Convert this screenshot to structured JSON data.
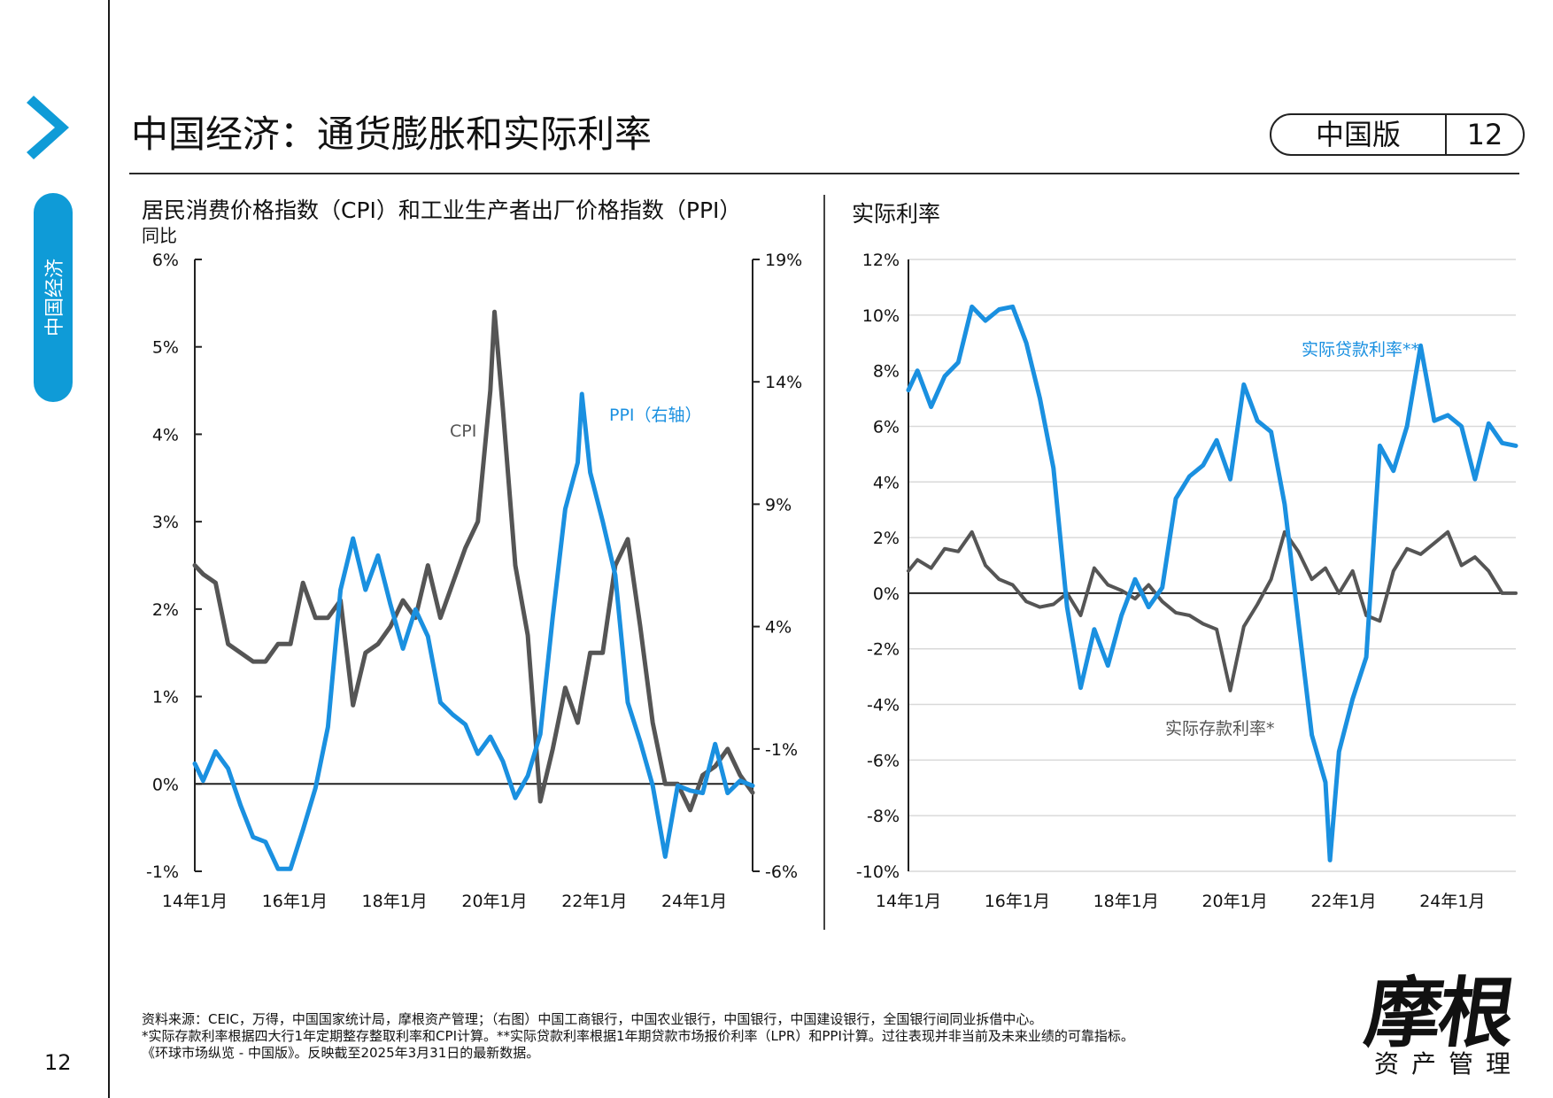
{
  "sidebar": {
    "section_label": "中国经济"
  },
  "header": {
    "title": "中国经济：通货膨胀和实际利率",
    "edition": "中国版",
    "page_badge": "12"
  },
  "charts": {
    "left": {
      "title": "居民消费价格指数（CPI）和工业生产者出厂价格指数（PPI）",
      "subtitle": "同比"
    },
    "right": {
      "title": "实际利率"
    }
  },
  "chart_data": [
    {
      "type": "line",
      "title": "居民消费价格指数（CPI）和工业生产者出厂价格指数（PPI）",
      "subtitle": "同比",
      "x_range": [
        "2014-01",
        "2025-03"
      ],
      "xtick_labels": [
        "14年1月",
        "16年1月",
        "18年1月",
        "20年1月",
        "22年1月",
        "24年1月"
      ],
      "ylim_left": [
        -1,
        6
      ],
      "ytick_labels_left": [
        "-1%",
        "0%",
        "1%",
        "2%",
        "3%",
        "4%",
        "5%",
        "6%"
      ],
      "ylim_right": [
        -6,
        19
      ],
      "ytick_labels_right": [
        "-6%",
        "-1%",
        "4%",
        "9%",
        "14%",
        "19%"
      ],
      "grid": false,
      "colors": {
        "CPI": "#555555",
        "PPI": "#1a90e0"
      },
      "series": [
        {
          "name": "CPI",
          "axis": "left",
          "x": [
            "2014-01",
            "2014-03",
            "2014-06",
            "2014-09",
            "2014-12",
            "2015-03",
            "2015-06",
            "2015-09",
            "2015-12",
            "2016-03",
            "2016-06",
            "2016-09",
            "2016-12",
            "2017-03",
            "2017-06",
            "2017-09",
            "2017-12",
            "2018-03",
            "2018-06",
            "2018-09",
            "2018-12",
            "2019-03",
            "2019-06",
            "2019-09",
            "2019-12",
            "2020-01",
            "2020-03",
            "2020-06",
            "2020-09",
            "2020-12",
            "2021-03",
            "2021-06",
            "2021-09",
            "2021-12",
            "2022-03",
            "2022-06",
            "2022-09",
            "2022-12",
            "2023-03",
            "2023-06",
            "2023-09",
            "2023-12",
            "2024-03",
            "2024-06",
            "2024-09",
            "2024-12",
            "2025-03"
          ],
          "values": [
            2.5,
            2.4,
            2.3,
            1.6,
            1.5,
            1.4,
            1.4,
            1.6,
            1.6,
            2.3,
            1.9,
            1.9,
            2.1,
            0.9,
            1.5,
            1.6,
            1.8,
            2.1,
            1.9,
            2.5,
            1.9,
            2.3,
            2.7,
            3.0,
            4.5,
            5.4,
            4.3,
            2.5,
            1.7,
            -0.2,
            0.4,
            1.1,
            0.7,
            1.5,
            1.5,
            2.5,
            2.8,
            1.8,
            0.7,
            0.0,
            0.0,
            -0.3,
            0.1,
            0.2,
            0.4,
            0.1,
            -0.1
          ]
        },
        {
          "name": "PPI（右轴）",
          "axis": "right",
          "x": [
            "2014-01",
            "2014-03",
            "2014-06",
            "2014-09",
            "2014-12",
            "2015-03",
            "2015-06",
            "2015-09",
            "2015-12",
            "2016-03",
            "2016-06",
            "2016-09",
            "2016-12",
            "2017-03",
            "2017-06",
            "2017-09",
            "2017-12",
            "2018-03",
            "2018-06",
            "2018-09",
            "2018-12",
            "2019-03",
            "2019-06",
            "2019-09",
            "2019-12",
            "2020-03",
            "2020-06",
            "2020-09",
            "2020-12",
            "2021-03",
            "2021-06",
            "2021-09",
            "2021-10",
            "2021-12",
            "2022-03",
            "2022-06",
            "2022-09",
            "2022-12",
            "2023-03",
            "2023-06",
            "2023-09",
            "2023-12",
            "2024-03",
            "2024-06",
            "2024-09",
            "2024-12",
            "2025-03"
          ],
          "values": [
            -1.6,
            -2.3,
            -1.1,
            -1.8,
            -3.3,
            -4.6,
            -4.8,
            -5.9,
            -5.9,
            -4.3,
            -2.6,
            -0.1,
            5.5,
            7.6,
            5.5,
            6.9,
            4.9,
            3.1,
            4.7,
            3.6,
            0.9,
            0.4,
            0.0,
            -1.2,
            -0.5,
            -1.5,
            -3.0,
            -2.1,
            -0.4,
            4.4,
            8.8,
            10.7,
            13.5,
            10.3,
            8.3,
            6.1,
            0.9,
            -0.7,
            -2.5,
            -5.4,
            -2.5,
            -2.7,
            -2.8,
            -0.8,
            -2.8,
            -2.3,
            -2.5
          ]
        }
      ]
    },
    {
      "type": "line",
      "title": "实际利率",
      "x_range": [
        "2014-01",
        "2025-03"
      ],
      "xtick_labels": [
        "14年1月",
        "16年1月",
        "18年1月",
        "20年1月",
        "22年1月",
        "24年1月"
      ],
      "ylim": [
        -10,
        12
      ],
      "ytick_labels": [
        "-10%",
        "-8%",
        "-6%",
        "-4%",
        "-2%",
        "0%",
        "2%",
        "4%",
        "6%",
        "8%",
        "10%",
        "12%"
      ],
      "grid": true,
      "colors": {
        "实际贷款利率**": "#1a90e0",
        "实际存款利率*": "#555555"
      },
      "series": [
        {
          "name": "实际贷款利率**",
          "x": [
            "2014-01",
            "2014-03",
            "2014-06",
            "2014-09",
            "2014-12",
            "2015-03",
            "2015-06",
            "2015-09",
            "2015-12",
            "2016-03",
            "2016-06",
            "2016-09",
            "2016-12",
            "2017-03",
            "2017-06",
            "2017-09",
            "2017-12",
            "2018-03",
            "2018-06",
            "2018-09",
            "2018-12",
            "2019-03",
            "2019-06",
            "2019-09",
            "2019-12",
            "2020-03",
            "2020-06",
            "2020-09",
            "2020-12",
            "2021-03",
            "2021-06",
            "2021-09",
            "2021-10",
            "2021-12",
            "2022-03",
            "2022-06",
            "2022-09",
            "2022-12",
            "2023-03",
            "2023-06",
            "2023-09",
            "2023-12",
            "2024-03",
            "2024-06",
            "2024-09",
            "2024-12",
            "2025-03"
          ],
          "values": [
            7.3,
            8.0,
            6.7,
            7.8,
            8.3,
            10.3,
            9.8,
            10.2,
            10.3,
            9.0,
            7.0,
            4.5,
            -0.5,
            -3.4,
            -1.3,
            -2.6,
            -0.8,
            0.5,
            -0.5,
            0.2,
            3.4,
            4.2,
            4.6,
            5.5,
            4.1,
            7.5,
            6.2,
            5.8,
            3.2,
            -1.0,
            -5.1,
            -6.8,
            -9.6,
            -5.7,
            -3.8,
            -2.3,
            5.3,
            4.4,
            6.0,
            8.9,
            6.2,
            6.4,
            6.0,
            4.1,
            6.1,
            5.4,
            5.3
          ]
        },
        {
          "name": "实际存款利率*",
          "x": [
            "2014-01",
            "2014-03",
            "2014-06",
            "2014-09",
            "2014-12",
            "2015-03",
            "2015-06",
            "2015-09",
            "2015-12",
            "2016-03",
            "2016-06",
            "2016-09",
            "2016-12",
            "2017-03",
            "2017-06",
            "2017-09",
            "2017-12",
            "2018-03",
            "2018-06",
            "2018-09",
            "2018-12",
            "2019-03",
            "2019-06",
            "2019-09",
            "2019-12",
            "2020-03",
            "2020-06",
            "2020-09",
            "2020-12",
            "2021-03",
            "2021-06",
            "2021-09",
            "2021-12",
            "2022-03",
            "2022-06",
            "2022-09",
            "2022-12",
            "2023-03",
            "2023-06",
            "2023-09",
            "2023-12",
            "2024-03",
            "2024-06",
            "2024-09",
            "2024-12",
            "2025-03"
          ],
          "values": [
            0.8,
            1.2,
            0.9,
            1.6,
            1.5,
            2.2,
            1.0,
            0.5,
            0.3,
            -0.3,
            -0.5,
            -0.4,
            0.0,
            -0.8,
            0.9,
            0.3,
            0.1,
            -0.2,
            0.3,
            -0.3,
            -0.7,
            -0.8,
            -1.1,
            -1.3,
            -3.5,
            -1.2,
            -0.4,
            0.5,
            2.2,
            1.5,
            0.5,
            0.9,
            0.0,
            0.8,
            -0.8,
            -1.0,
            0.8,
            1.6,
            1.4,
            1.8,
            2.2,
            1.0,
            1.3,
            0.8,
            0.0,
            0.0
          ]
        }
      ]
    }
  ],
  "footnotes": [
    "资料来源：CEIC，万得，中国国家统计局，摩根资产管理；（右图）中国工商银行，中国农业银行，中国银行，中国建设银行，全国银行间同业拆借中心。",
    "*实际存款利率根据四大行1年定期整存整取利率和CPI计算。**实际贷款利率根据1年期贷款市场报价利率（LPR）和PPI计算。过往表现并非当前及未来业绩的可靠指标。",
    "《环球市场纵览 - 中国版》。反映截至2025年3月31日的最新数据。"
  ],
  "page_number": "12",
  "logo": {
    "main": "摩根",
    "sub": "资产管理"
  }
}
